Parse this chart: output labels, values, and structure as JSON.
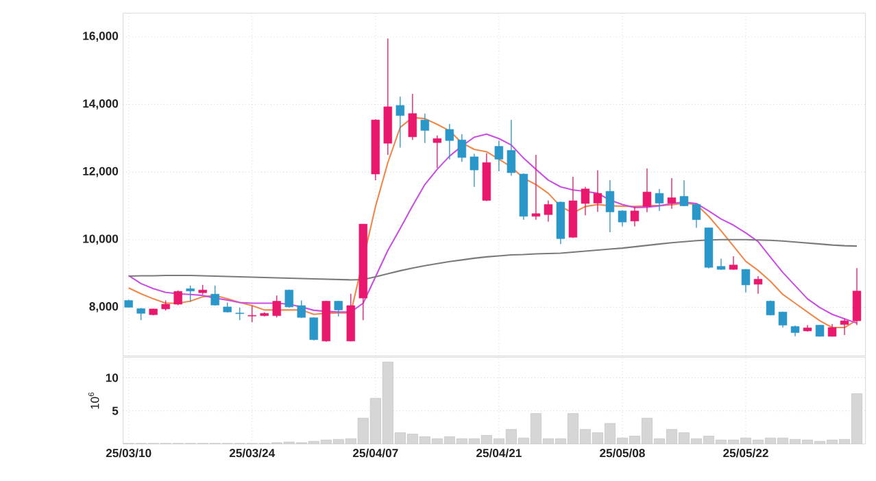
{
  "chart_data": [
    {
      "type": "candlestick",
      "categories": [
        null,
        null,
        null,
        null,
        null,
        null,
        null,
        null,
        null,
        null,
        null,
        null,
        null,
        null,
        null,
        null,
        null,
        null,
        null,
        null,
        null,
        null,
        null,
        null,
        null,
        null,
        null,
        null,
        null,
        null,
        null,
        null,
        null,
        null,
        null,
        null,
        null,
        null,
        null,
        null,
        null,
        null,
        null,
        null,
        null,
        null,
        null,
        null,
        null,
        null,
        null,
        null,
        null,
        null,
        null,
        null,
        null,
        null,
        null,
        null
      ],
      "ohlc": [
        [
          8200,
          8220,
          7990,
          8000
        ],
        [
          7960,
          7980,
          7620,
          7820
        ],
        [
          7780,
          7960,
          7760,
          7950
        ],
        [
          7950,
          8200,
          7900,
          8090
        ],
        [
          8090,
          8500,
          8060,
          8470
        ],
        [
          8550,
          8640,
          8160,
          8480
        ],
        [
          8430,
          8660,
          8380,
          8510
        ],
        [
          8390,
          8640,
          8050,
          8065
        ],
        [
          8010,
          8140,
          7840,
          7860
        ],
        [
          7830,
          7990,
          7620,
          7810
        ],
        [
          7740,
          8050,
          7560,
          7760
        ],
        [
          7750,
          7850,
          7730,
          7820
        ],
        [
          7750,
          8350,
          7700,
          8180
        ],
        [
          8510,
          8520,
          7990,
          8010
        ],
        [
          8050,
          8200,
          7680,
          7700
        ],
        [
          7690,
          7700,
          7020,
          7040
        ],
        [
          7000,
          8190,
          6980,
          8180
        ],
        [
          8180,
          8190,
          7730,
          7920
        ],
        [
          7000,
          8400,
          6990,
          8050
        ],
        [
          8270,
          10460,
          7620,
          10460
        ],
        [
          11940,
          13560,
          11760,
          13540
        ],
        [
          12850,
          15950,
          12510,
          13930
        ],
        [
          13970,
          14230,
          12720,
          13670
        ],
        [
          13040,
          14310,
          12950,
          13730
        ],
        [
          13540,
          13730,
          12860,
          13230
        ],
        [
          12870,
          13080,
          12120,
          12990
        ],
        [
          13260,
          13420,
          12370,
          12930
        ],
        [
          12950,
          13120,
          12300,
          12430
        ],
        [
          12450,
          12540,
          11560,
          12060
        ],
        [
          11160,
          12560,
          11140,
          12280
        ],
        [
          12760,
          12930,
          12020,
          12380
        ],
        [
          12640,
          13540,
          11890,
          11980
        ],
        [
          11940,
          11960,
          10590,
          10690
        ],
        [
          10690,
          12510,
          10590,
          10770
        ],
        [
          10740,
          11160,
          10530,
          11040
        ],
        [
          11110,
          11130,
          9870,
          10030
        ],
        [
          10070,
          11860,
          10050,
          11150
        ],
        [
          11070,
          11560,
          10720,
          11500
        ],
        [
          11080,
          12050,
          10820,
          11370
        ],
        [
          11430,
          11760,
          10220,
          10820
        ],
        [
          10850,
          10870,
          10390,
          10520
        ],
        [
          10550,
          10980,
          10390,
          10850
        ],
        [
          10980,
          12110,
          10810,
          11410
        ],
        [
          11370,
          11500,
          10850,
          11080
        ],
        [
          11080,
          11820,
          10910,
          11240
        ],
        [
          11280,
          11760,
          10990,
          11000
        ],
        [
          11040,
          11050,
          10350,
          10590
        ],
        [
          10350,
          10360,
          9150,
          9180
        ],
        [
          9210,
          9440,
          9110,
          9120
        ],
        [
          9120,
          9510,
          9110,
          9250
        ],
        [
          9120,
          9130,
          8440,
          8660
        ],
        [
          8680,
          8920,
          8400,
          8830
        ],
        [
          8180,
          8200,
          7760,
          7770
        ],
        [
          7860,
          7870,
          7400,
          7470
        ],
        [
          7430,
          7460,
          7140,
          7250
        ],
        [
          7300,
          7470,
          7280,
          7390
        ],
        [
          7470,
          7480,
          7130,
          7140
        ],
        [
          7140,
          7500,
          7130,
          7400
        ],
        [
          7490,
          7660,
          7180,
          7600
        ],
        [
          7600,
          9160,
          7470,
          8480
        ]
      ],
      "colors": [
        "#2b96c8",
        "#2b96c8",
        "#e8186d",
        "#e8186d",
        "#e8186d",
        "#2b96c8",
        "#e8186d",
        "#2b96c8",
        "#2b96c8",
        "#2b96c8",
        "#e8186d",
        "#e8186d",
        "#e8186d",
        "#2b96c8",
        "#2b96c8",
        "#2b96c8",
        "#e8186d",
        "#2b96c8",
        "#e8186d",
        "#e8186d",
        "#e8186d",
        "#e8186d",
        "#2b96c8",
        "#e8186d",
        "#2b96c8",
        "#e8186d",
        "#2b96c8",
        "#2b96c8",
        "#2b96c8",
        "#e8186d",
        "#2b96c8",
        "#2b96c8",
        "#2b96c8",
        "#e8186d",
        "#e8186d",
        "#2b96c8",
        "#e8186d",
        "#e8186d",
        "#e8186d",
        "#2b96c8",
        "#2b96c8",
        "#e8186d",
        "#e8186d",
        "#2b96c8",
        "#e8186d",
        "#2b96c8",
        "#2b96c8",
        "#2b96c8",
        "#2b96c8",
        "#e8186d",
        "#2b96c8",
        "#e8186d",
        "#2b96c8",
        "#2b96c8",
        "#2b96c8",
        "#e8186d",
        "#2b96c8",
        "#e8186d",
        "#e8186d",
        "#e8186d"
      ],
      "series": [
        {
          "type": "line",
          "color": "#f0874a",
          "values": [
            8570,
            8400,
            8250,
            8120,
            8120,
            8180,
            8310,
            8350,
            8250,
            8140,
            8050,
            7920,
            7920,
            7920,
            7920,
            7790,
            7820,
            7830,
            7830,
            null,
            10980,
            12280,
            13320,
            13610,
            13580,
            13410,
            13220,
            12860,
            12670,
            12600,
            12380,
            12150,
            11820,
            11630,
            11370,
            10980,
            10790,
            10980,
            11040,
            11000,
            10990,
            10980,
            11000,
            11010,
            11030,
            11080,
            11040,
            10690,
            10260,
            9810,
            9360,
            9090,
            8770,
            8380,
            8120,
            7860,
            7600,
            7400,
            7400,
            7620
          ]
        },
        {
          "type": "line",
          "color": "#c94fe0",
          "values": [
            8940,
            8700,
            8550,
            8440,
            8400,
            8380,
            8350,
            8270,
            8210,
            8140,
            8120,
            8120,
            8120,
            8090,
            8010,
            7910,
            7880,
            7860,
            7860,
            8120,
            8900,
            9680,
            10330,
            11000,
            11630,
            12080,
            12470,
            12770,
            13030,
            13120,
            12990,
            12800,
            12410,
            12080,
            11760,
            11560,
            11470,
            11430,
            11370,
            11170,
            11040,
            10950,
            10960,
            11000,
            11070,
            11110,
            11070,
            10850,
            10610,
            10430,
            10200,
            9940,
            9480,
            9030,
            8640,
            8250,
            7990,
            7790,
            7660,
            7530
          ]
        },
        {
          "type": "line",
          "color": "#7a7a7a",
          "values": [
            8920,
            8930,
            8930,
            8940,
            8940,
            8940,
            8930,
            8920,
            8910,
            8900,
            8890,
            8880,
            8870,
            8860,
            8850,
            8840,
            8830,
            8820,
            8810,
            8820,
            8900,
            8990,
            9080,
            9160,
            9230,
            9290,
            9350,
            9400,
            9450,
            9490,
            9520,
            9550,
            9560,
            9580,
            9590,
            9600,
            9630,
            9660,
            9690,
            9720,
            9750,
            9790,
            9830,
            9870,
            9910,
            9940,
            9970,
            9990,
            10000,
            10000,
            10000,
            9990,
            9980,
            9960,
            9930,
            9900,
            9870,
            9840,
            9820,
            9810
          ]
        }
      ],
      "ylim": [
        6560,
        16700
      ],
      "yticks": [
        {
          "value": 8000,
          "label": "8,000"
        },
        {
          "value": 10000,
          "label": "10,000"
        },
        {
          "value": 12000,
          "label": "12,000"
        },
        {
          "value": 14000,
          "label": "14,000"
        },
        {
          "value": 16000,
          "label": "16,000"
        }
      ],
      "grid": true,
      "tick_labels": "y"
    },
    {
      "type": "bar",
      "ylabel": "10$^{6}$",
      "categories": [
        "25/03/10",
        null,
        null,
        null,
        null,
        null,
        null,
        null,
        null,
        null,
        "25/03/24",
        null,
        null,
        null,
        null,
        null,
        null,
        null,
        null,
        null,
        "25/04/07",
        null,
        null,
        null,
        null,
        null,
        null,
        null,
        null,
        null,
        "25/04/21",
        null,
        null,
        null,
        null,
        null,
        null,
        null,
        null,
        null,
        "25/05/08",
        null,
        null,
        null,
        null,
        null,
        null,
        null,
        null,
        null,
        "25/05/22",
        null,
        null,
        null,
        null,
        null,
        null,
        null,
        null,
        null
      ],
      "values": [
        0.1,
        0.1,
        0.1,
        0.1,
        0.1,
        0.1,
        0.1,
        0.1,
        0.1,
        0.1,
        0.1,
        0.1,
        0.2,
        0.3,
        0.2,
        0.4,
        0.6,
        0.7,
        0.8,
        3.9,
        6.9,
        12.4,
        1.7,
        1.5,
        1.1,
        0.8,
        1.1,
        0.8,
        0.8,
        1.3,
        0.8,
        2.2,
        0.9,
        4.6,
        0.8,
        0.8,
        4.6,
        2.2,
        1.7,
        3.1,
        0.9,
        1.2,
        3.9,
        0.8,
        2.2,
        1.7,
        0.8,
        1.2,
        0.6,
        0.6,
        0.9,
        0.6,
        0.9,
        0.9,
        0.7,
        0.6,
        0.4,
        0.6,
        0.7,
        7.6
      ],
      "color": "#d6d6d6",
      "ylim": [
        0,
        13.1
      ],
      "yticks": [
        5,
        10
      ],
      "grid": true
    }
  ]
}
